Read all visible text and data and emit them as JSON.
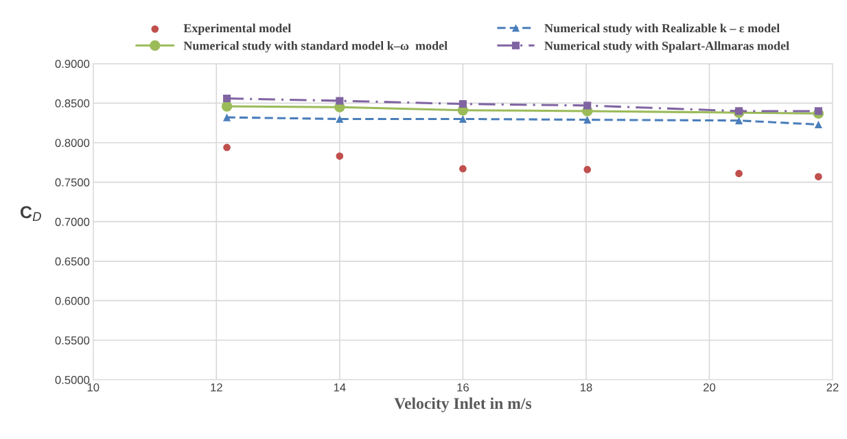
{
  "chart_data": {
    "type": "line",
    "xlabel": "Velocity Inlet in m/s",
    "ylabel": "C$_{D}$",
    "x": [
      12.17,
      14,
      16,
      18.02,
      20.48,
      21.77
    ],
    "series": [
      {
        "name": "Experimental model",
        "type": "scatter",
        "color": "#c0504d",
        "marker": "circle",
        "values": [
          0.794,
          0.783,
          0.767,
          0.766,
          0.761,
          0.757
        ]
      },
      {
        "name": "Numerical study with Realizable k – ε model",
        "color": "#4a7ebb",
        "marker": "triangle",
        "line_style": "dashed",
        "values": [
          0.832,
          0.83,
          0.83,
          0.829,
          0.828,
          0.823
        ]
      },
      {
        "name": "Numerical study with standard model k–ω  model",
        "color": "#9bbb59",
        "marker": "circle",
        "line_style": "solid",
        "values": [
          0.846,
          0.845,
          0.841,
          0.84,
          0.838,
          0.837
        ]
      },
      {
        "name": "Numerical study with Spalart-Allmaras model",
        "color": "#8064a2",
        "marker": "square",
        "line_style": "dashdot",
        "values": [
          0.856,
          0.853,
          0.849,
          0.847,
          0.84,
          0.84
        ]
      }
    ],
    "xlim": [
      10,
      22
    ],
    "xticks": [
      10,
      12,
      14,
      16,
      18,
      20,
      22
    ],
    "ylim": [
      0.5,
      0.9
    ],
    "yticks": [
      {
        "value": 0.5,
        "label": "0.5000"
      },
      {
        "value": 0.55,
        "label": "0.5500"
      },
      {
        "value": 0.6,
        "label": "0.6000"
      },
      {
        "value": 0.65,
        "label": "0.6500"
      },
      {
        "value": 0.7,
        "label": "0.7000"
      },
      {
        "value": 0.75,
        "label": "0.7500"
      },
      {
        "value": 0.8,
        "label": "0.8000"
      },
      {
        "value": 0.85,
        "label": "0.8500"
      },
      {
        "value": 0.9,
        "label": "0.9000"
      }
    ],
    "grid": true,
    "legend": "top"
  }
}
